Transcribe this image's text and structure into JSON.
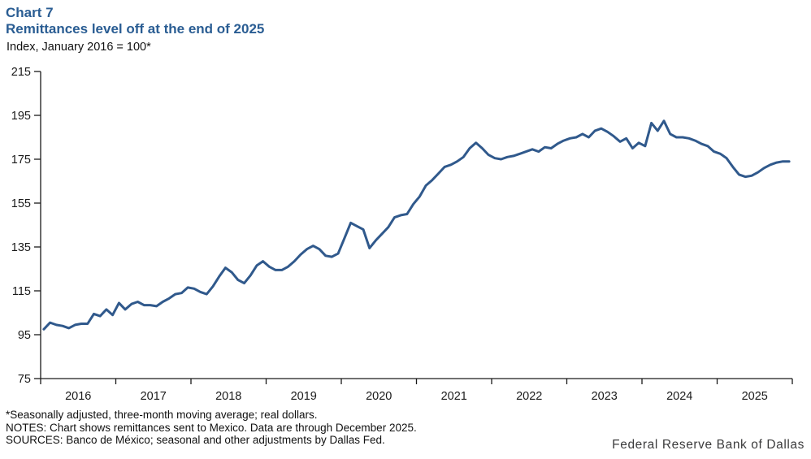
{
  "header": {
    "chart_label": "Chart 7",
    "title": "Remittances level off at the end of 2025",
    "axis_note": "Index, January 2016 = 100*"
  },
  "footnotes": {
    "line1": "*Seasonally adjusted, three-month moving average; real dollars.",
    "line2": "NOTES: Chart shows remittances sent to Mexico.  Data are through December 2025.",
    "line3": "SOURCES: Banco de México; seasonal and other adjustments by Dallas Fed."
  },
  "branding": "Federal Reserve Bank of Dallas",
  "colors": {
    "title_blue": "#2A5D93",
    "line_blue": "#30598C",
    "axis": "#1a1a1a",
    "tick_text": "#1a1a1a"
  },
  "chart_data": {
    "type": "line",
    "title": "Remittances level off at the end of 2025",
    "ylabel": "Index, January 2016 = 100*",
    "xlabel": "",
    "ylim": [
      75,
      215
    ],
    "ytick_step": 20,
    "ytick_labels": [
      "75",
      "95",
      "115",
      "135",
      "155",
      "175",
      "195",
      "215"
    ],
    "xtick_labels": [
      "2016",
      "2017",
      "2018",
      "2019",
      "2020",
      "2021",
      "2022",
      "2023",
      "2024",
      "2025"
    ],
    "grid": false,
    "legend": "none",
    "x_start": "2016-01",
    "x_end": "2025-12",
    "series": [
      {
        "name": "Remittances sent to Mexico (index, Jan 2016 = 100, 3-mo MA)",
        "monthly_values": [
          97.5,
          100.5,
          99.5,
          99,
          98,
          99.5,
          100,
          100,
          104.5,
          103.5,
          106.5,
          104,
          109.5,
          106.5,
          109,
          110,
          108.5,
          108.5,
          108,
          110,
          111.5,
          113.5,
          114,
          116.5,
          116,
          114.5,
          113.5,
          117,
          121.5,
          125.5,
          123.5,
          120,
          118.5,
          122,
          126.5,
          128.5,
          126,
          124.5,
          124.5,
          126,
          128.5,
          131.5,
          134,
          135.5,
          134,
          131,
          130.5,
          132,
          139,
          146,
          144.5,
          143,
          134.5,
          138,
          141,
          144,
          148.5,
          149.5,
          150,
          154.5,
          158,
          163,
          165.5,
          168.5,
          171.5,
          172.5,
          174,
          176,
          180,
          182.5,
          180,
          177,
          175.5,
          175,
          176,
          176.5,
          177.5,
          178.5,
          179.5,
          178.5,
          180.5,
          180,
          182,
          183.5,
          184.5,
          185,
          186.5,
          185,
          188,
          189,
          187.5,
          185.5,
          183,
          184.5,
          180,
          182.5,
          181,
          191.5,
          188,
          192.5,
          186.5,
          185,
          185,
          184.5,
          183.5,
          182,
          181,
          178.5,
          177.5,
          175.5,
          171.5,
          168,
          167,
          167.5,
          169,
          171,
          172.5,
          173.5,
          174,
          174
        ]
      }
    ]
  }
}
